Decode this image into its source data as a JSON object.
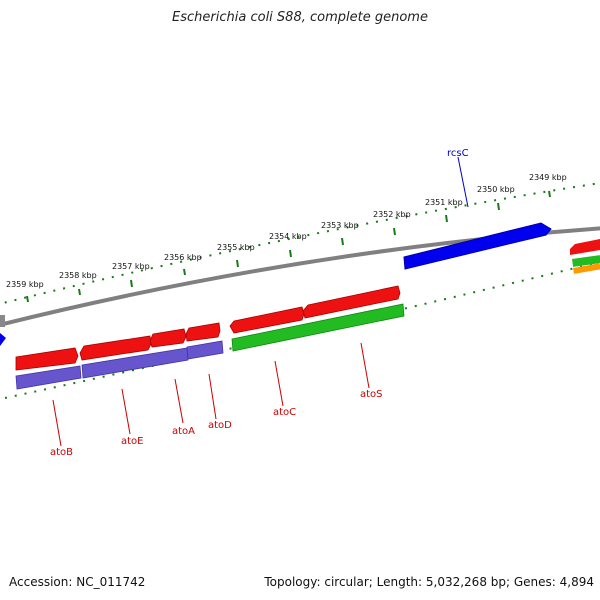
{
  "title": "Escherichia coli S88, complete genome",
  "accession": "Accession: NC_011742",
  "summary": "Topology: circular; Length: 5,032,268 bp; Genes: 4,894",
  "ruler_ticks": [
    "2359 kbp",
    "2358 kbp",
    "2357 kbp",
    "2356 kbp",
    "2355 kbp",
    "2354 kbp",
    "2353 kbp",
    "2352 kbp",
    "2351 kbp",
    "2350 kbp",
    "2349 kbp"
  ],
  "gene_labels": {
    "rcsC": "rcsC",
    "atoB": "atoB",
    "atoE": "atoE",
    "atoA": "atoA",
    "atoD": "atoD",
    "atoC": "atoC",
    "atoS": "atoS"
  },
  "colors": {
    "backbone": "#808080",
    "ruler": "#1a7a1a",
    "cds_forward": "#ee1111",
    "gene_reverse": "#0000ee",
    "rna_green": "#22bb22",
    "protein_purple": "#6655cc",
    "orange": "#ff9900",
    "label_red": "#cc0000",
    "label_blue": "#0000cc"
  }
}
